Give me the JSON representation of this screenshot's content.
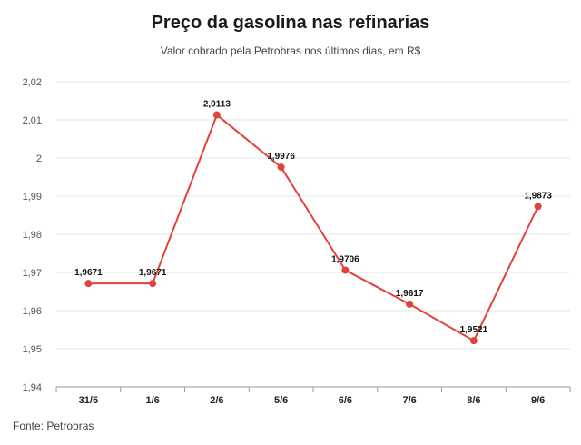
{
  "title": "Preço da gasolina nas refinarias",
  "subtitle": "Valor cobrado pela Petrobras nos últimos dias, em R$",
  "source": "Fonte: Petrobras",
  "colors": {
    "line": "#e0433c",
    "grid": "#e6e6e6",
    "axis": "#999999"
  },
  "chart_data": {
    "type": "line",
    "title": "Preço da gasolina nas refinarias",
    "subtitle": "Valor cobrado pela Petrobras nos últimos dias, em R$",
    "categories": [
      "31/5",
      "1/6",
      "2/6",
      "5/6",
      "6/6",
      "7/6",
      "8/6",
      "9/6"
    ],
    "values": [
      1.9671,
      1.9671,
      2.0113,
      1.9976,
      1.9706,
      1.9617,
      1.9521,
      1.9873
    ],
    "value_labels": [
      "1,9671",
      "1,9671",
      "2,0113",
      "1,9976",
      "1,9706",
      "1,9617",
      "1,9521",
      "1,9873"
    ],
    "ylim": [
      1.94,
      2.02
    ],
    "yticks": [
      1.94,
      1.95,
      1.96,
      1.97,
      1.98,
      1.99,
      2.0,
      2.01,
      2.02
    ],
    "ytick_labels": [
      "1,94",
      "1,95",
      "1,96",
      "1,97",
      "1,98",
      "1,99",
      "2",
      "2,01",
      "2,02"
    ],
    "grid": true,
    "legend": "none"
  }
}
